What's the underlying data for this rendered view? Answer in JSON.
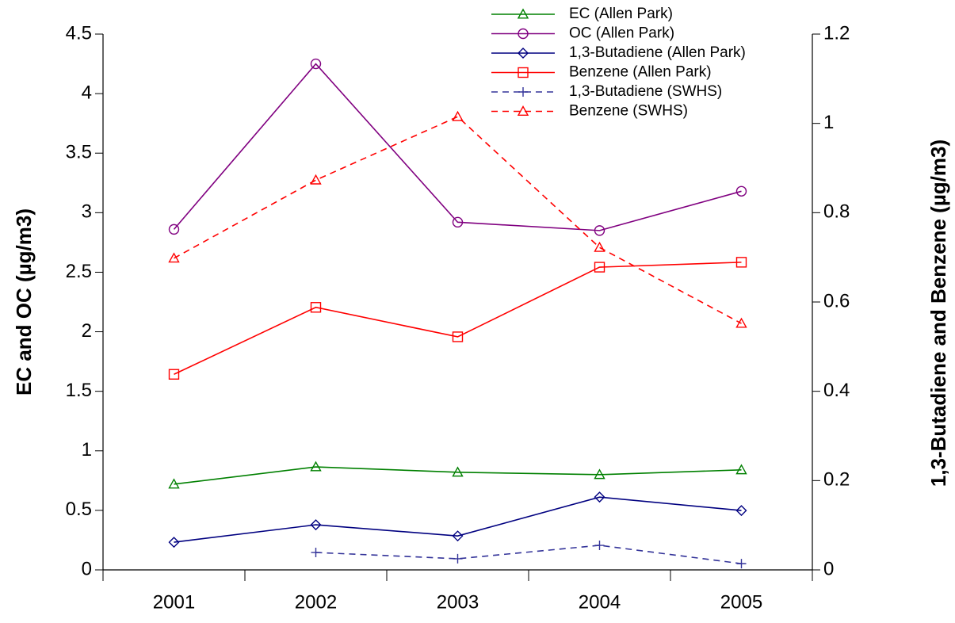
{
  "chart_data": {
    "type": "line",
    "categories": [
      "2001",
      "2002",
      "2003",
      "2004",
      "2005"
    ],
    "y_label": "EC and OC (µg/m3)",
    "y2_label": "1,3-Butadiene and Benzene (µg/m3)",
    "ylim": [
      0,
      4.5
    ],
    "yticks": [
      0,
      0.5,
      1,
      1.5,
      2,
      2.5,
      3,
      3.5,
      4,
      4.5
    ],
    "y2lim": [
      0,
      1.2
    ],
    "y2ticks": [
      0,
      0.2,
      0.4,
      0.6,
      0.8,
      1,
      1.2
    ],
    "legend": "top-right",
    "series": [
      {
        "name": "EC (Allen Park)",
        "color": "#008000",
        "marker": "triangle",
        "dashed": false,
        "values": [
          0.72,
          0.865,
          0.82,
          0.8,
          0.84
        ]
      },
      {
        "name": "OC (Allen Park)",
        "color": "#800080",
        "marker": "circle",
        "dashed": false,
        "values": [
          2.86,
          4.25,
          2.92,
          2.85,
          3.18
        ]
      },
      {
        "name": "1,3-Butadiene (Allen Park)",
        "color": "#000080",
        "marker": "diamond",
        "dashed": false,
        "axis": "y2",
        "values": [
          0.062,
          0.101,
          0.076,
          0.163,
          0.133
        ]
      },
      {
        "name": "Benzene (Allen Park)",
        "color": "#ff0000",
        "marker": "square",
        "dashed": false,
        "axis": "y2",
        "values": [
          0.438,
          0.588,
          0.522,
          0.678,
          0.689
        ]
      },
      {
        "name": "1,3-Butadiene (SWHS)",
        "color": "#333399",
        "marker": "plus",
        "dashed": true,
        "axis": "y2",
        "values": [
          null,
          0.039,
          0.025,
          0.055,
          0.014
        ]
      },
      {
        "name": "Benzene (SWHS)",
        "color": "#ff0000",
        "marker": "triangle",
        "dashed": true,
        "axis": "y2",
        "values": [
          0.698,
          0.873,
          1.015,
          0.722,
          0.552
        ]
      }
    ]
  }
}
